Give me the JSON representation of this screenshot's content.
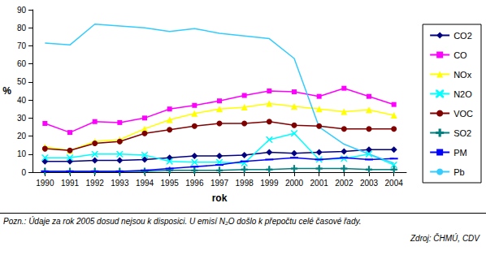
{
  "chart_data": {
    "type": "line",
    "x_label": "rok",
    "y_label": "%",
    "categories": [
      "1990",
      "1991",
      "1992",
      "1993",
      "1994",
      "1995",
      "1996",
      "1997",
      "1998",
      "1999",
      "2000",
      "2001",
      "2002",
      "2003",
      "2004"
    ],
    "series": [
      {
        "name": "CO2",
        "color": "#000080",
        "marker": "diamond",
        "values": [
          6,
          6,
          6.5,
          6.5,
          7,
          8,
          9,
          9,
          9.5,
          11,
          10.5,
          11,
          11.5,
          12.5,
          12.5
        ]
      },
      {
        "name": "CO",
        "color": "#ff00ff",
        "marker": "square",
        "values": [
          27,
          22,
          28,
          27.5,
          30,
          35,
          37,
          39.5,
          42.5,
          45,
          44.5,
          42,
          46.5,
          42,
          37.5
        ]
      },
      {
        "name": "NOx",
        "color": "#ffff00",
        "marker": "triangle",
        "values": [
          14,
          12,
          17,
          18,
          24,
          29,
          32.5,
          35,
          36,
          38,
          36.5,
          35,
          33.5,
          34.5,
          31.5
        ]
      },
      {
        "name": "N2O",
        "color": "#00ffff",
        "marker": "x",
        "values": [
          8,
          8,
          10,
          10,
          9.5,
          6,
          5.5,
          5.5,
          5,
          18,
          21.5,
          7,
          7.5,
          10,
          4
        ]
      },
      {
        "name": "VOC",
        "color": "#800000",
        "marker": "circle",
        "values": [
          13,
          12,
          16,
          17,
          21.5,
          23.5,
          25.5,
          27,
          27,
          28,
          26,
          25.5,
          24,
          24,
          24
        ]
      },
      {
        "name": "SO2",
        "color": "#008080",
        "marker": "plus",
        "values": [
          0.5,
          0.5,
          0.5,
          0.5,
          0.5,
          1,
          1,
          1,
          1.5,
          1.5,
          2,
          2,
          2,
          1.5,
          1.5
        ]
      },
      {
        "name": "PM",
        "color": "#0000ff",
        "marker": "dash",
        "values": [
          0.5,
          0.5,
          0.5,
          0.5,
          1,
          2,
          3,
          4,
          6,
          7,
          8,
          7,
          8,
          7,
          7.5
        ]
      },
      {
        "name": "Pb",
        "color": "#33ccff",
        "marker": "none",
        "values": [
          71.5,
          70.5,
          82,
          81,
          80,
          78,
          79.5,
          77,
          75.5,
          74,
          63,
          25,
          15.5,
          10,
          5
        ]
      }
    ],
    "ylim": [
      0,
      90
    ],
    "yticks": [
      0,
      10,
      20,
      30,
      40,
      50,
      60,
      70,
      80,
      90
    ],
    "grid": false,
    "legend": "right",
    "annotations": [
      "Pozn.: Údaje za rok 2005 dosud nejsou k disposici. U emisí N₂O došlo k přepočtu celé časové řady.",
      "Zdroj: ČHMÚ, CDV"
    ]
  }
}
